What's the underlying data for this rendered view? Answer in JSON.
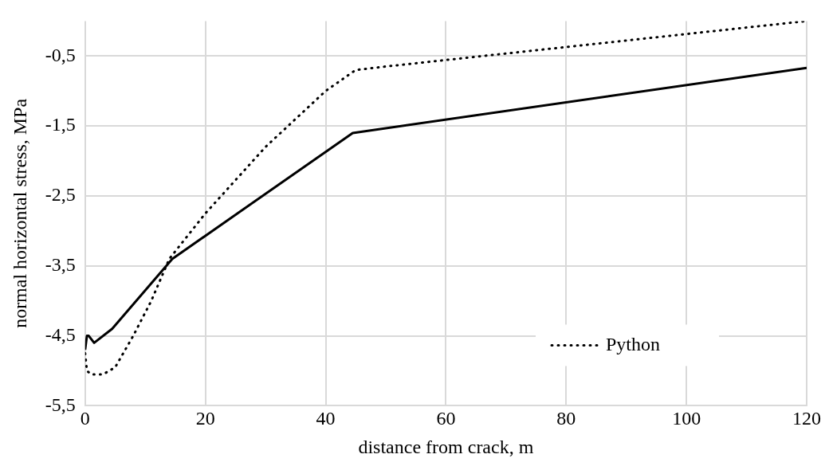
{
  "chart_data": {
    "type": "line",
    "xlabel": "distance from crack, m",
    "ylabel": "normal horizontal stress, MPa",
    "xlim": [
      0,
      120
    ],
    "xticks": [
      0,
      20,
      40,
      60,
      80,
      100,
      120
    ],
    "ylim": [
      -5.5,
      0
    ],
    "yticks": [
      {
        "value": -5.5,
        "label": "-5,5"
      },
      {
        "value": -4.5,
        "label": "-4,5"
      },
      {
        "value": -3.5,
        "label": "-3,5"
      },
      {
        "value": -2.5,
        "label": "-2,5"
      },
      {
        "value": -1.5,
        "label": "-1,5"
      },
      {
        "value": -0.5,
        "label": "-0,5"
      }
    ],
    "grid": true,
    "legend": "bottom right",
    "marker": "none",
    "series": [
      {
        "color": "#000000",
        "line_style": "solid",
        "x": [
          0,
          0.3,
          0.6,
          1.5,
          4.5,
          14.5,
          44.5,
          120
        ],
        "values": [
          -4.7,
          -4.5,
          -4.5,
          -4.6,
          -4.4,
          -3.4,
          -1.6,
          -0.67
        ]
      },
      {
        "name": "Python",
        "color": "#000000",
        "line_style": "dotted",
        "x": [
          0,
          0.3,
          1,
          3,
          5,
          8,
          11,
          14,
          20,
          30,
          40,
          45,
          50,
          120
        ],
        "values": [
          -4.75,
          -5.0,
          -5.05,
          -5.05,
          -4.95,
          -4.5,
          -4.0,
          -3.4,
          -2.75,
          -1.8,
          -1.0,
          -0.7,
          -0.65,
          0
        ]
      }
    ]
  }
}
